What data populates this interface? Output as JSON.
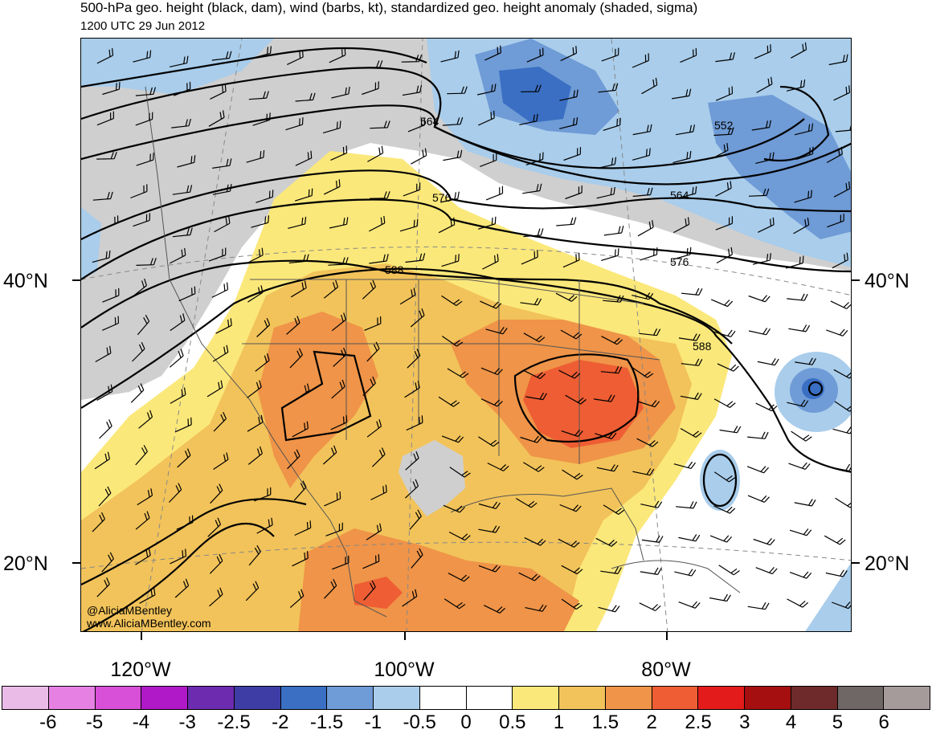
{
  "title": "500-hPa geo. height (black, dam), wind (barbs, kt), standardized geo. height anomaly (shaded, sigma)",
  "subtitle": "1200 UTC 29 Jun 2012",
  "credits": [
    "@AliciaMBentley",
    "www.AliciaMBentley.com"
  ],
  "lat_labels": [
    "40°N",
    "20°N"
  ],
  "lon_labels": [
    "120°W",
    "100°W",
    "80°W"
  ],
  "contour_labels": [
    "564",
    "552",
    "576",
    "564",
    "588",
    "576",
    "588"
  ],
  "colorbar": {
    "labels": [
      "-6",
      "-5",
      "-4",
      "-3",
      "-2.5",
      "-2",
      "-1.5",
      "-1",
      "-0.5",
      "0",
      "0.5",
      "1",
      "1.5",
      "2",
      "2.5",
      "3",
      "4",
      "5",
      "6"
    ],
    "colors": [
      "#ebbbe8",
      "#e681e3",
      "#d84fd8",
      "#b019c7",
      "#6d2bb0",
      "#3e3da6",
      "#3a6fc3",
      "#6f9bd6",
      "#a9cdeb",
      "#ffffff",
      "#ffffff",
      "#fbe87a",
      "#f2c35a",
      "#ef9448",
      "#ee5d33",
      "#e41b1b",
      "#a60f0f",
      "#6e2a2a",
      "#6f6666",
      "#a69b9b"
    ]
  },
  "map_colors": {
    "gray": "#cfcfcf",
    "blue1": "#a9cdeb",
    "blue2": "#6f9bd6",
    "blue3": "#3a6fc3",
    "yellow": "#fbe87a",
    "orange1": "#f2c35a",
    "orange2": "#ef9448",
    "red": "#ee5d33"
  }
}
